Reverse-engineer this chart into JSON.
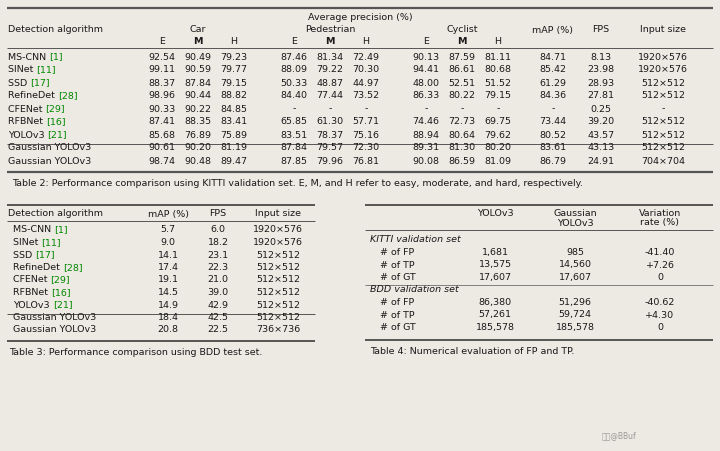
{
  "bg_color": "#ede9e3",
  "table2": {
    "rows": [
      [
        "MS-CNN [1]",
        "92.54",
        "90.49",
        "79.23",
        "87.46",
        "81.34",
        "72.49",
        "90.13",
        "87.59",
        "81.11",
        "84.71",
        "8.13",
        "1920×576"
      ],
      [
        "SINet [11]",
        "99.11",
        "90.59",
        "79.77",
        "88.09",
        "79.22",
        "70.30",
        "94.41",
        "86.61",
        "80.68",
        "85.42",
        "23.98",
        "1920×576"
      ],
      [
        "SSD [17]",
        "88.37",
        "87.84",
        "79.15",
        "50.33",
        "48.87",
        "44.97",
        "48.00",
        "52.51",
        "51.52",
        "61.29",
        "28.93",
        "512×512"
      ],
      [
        "RefineDet [28]",
        "98.96",
        "90.44",
        "88.82",
        "84.40",
        "77.44",
        "73.52",
        "86.33",
        "80.22",
        "79.15",
        "84.36",
        "27.81",
        "512×512"
      ],
      [
        "CFENet [29]",
        "90.33",
        "90.22",
        "84.85",
        "-",
        "-",
        "-",
        "-",
        "-",
        "-",
        "-",
        "0.25",
        "-"
      ],
      [
        "RFBNet [16]",
        "87.41",
        "88.35",
        "83.41",
        "65.85",
        "61.30",
        "57.71",
        "74.46",
        "72.73",
        "69.75",
        "73.44",
        "39.20",
        "512×512"
      ],
      [
        "YOLOv3 [21]",
        "85.68",
        "76.89",
        "75.89",
        "83.51",
        "78.37",
        "75.16",
        "88.94",
        "80.64",
        "79.62",
        "80.52",
        "43.57",
        "512×512"
      ],
      [
        "Gaussian YOLOv3",
        "90.61",
        "90.20",
        "81.19",
        "87.84",
        "79.57",
        "72.30",
        "89.31",
        "81.30",
        "80.20",
        "83.61",
        "43.13",
        "512×512"
      ],
      [
        "Gaussian YOLOv3",
        "98.74",
        "90.48",
        "89.47",
        "87.85",
        "79.96",
        "76.81",
        "90.08",
        "86.59",
        "81.09",
        "86.79",
        "24.91",
        "704×704"
      ]
    ],
    "caption": "Table 2: Performance comparison using KITTI validation set. E, M, and H refer to easy, moderate, and hard, respectively."
  },
  "table3": {
    "rows": [
      [
        "MS-CNN [1]",
        "5.7",
        "6.0",
        "1920×576"
      ],
      [
        "SINet [11]",
        "9.0",
        "18.2",
        "1920×576"
      ],
      [
        "SSD [17]",
        "14.1",
        "23.1",
        "512×512"
      ],
      [
        "RefineDet [28]",
        "17.4",
        "22.3",
        "512×512"
      ],
      [
        "CFENet [29]",
        "19.1",
        "21.0",
        "512×512"
      ],
      [
        "RFBNet [16]",
        "14.5",
        "39.0",
        "512×512"
      ],
      [
        "YOLOv3 [21]",
        "14.9",
        "42.9",
        "512×512"
      ],
      [
        "Gaussian YOLOv3",
        "18.4",
        "42.5",
        "512×512"
      ],
      [
        "Gaussian YOLOv3",
        "20.8",
        "22.5",
        "736×736"
      ]
    ],
    "caption": "Table 3: Performance comparison using BDD test set."
  },
  "table4": {
    "groups": [
      {
        "group_label": "KITTI validation set",
        "rows": [
          [
            "# of FP",
            "1,681",
            "985",
            "-41.40"
          ],
          [
            "# of TP",
            "13,575",
            "14,560",
            "+7.26"
          ],
          [
            "# of GT",
            "17,607",
            "17,607",
            "0"
          ]
        ]
      },
      {
        "group_label": "BDD validation set",
        "rows": [
          [
            "# of FP",
            "86,380",
            "51,296",
            "-40.62"
          ],
          [
            "# of TP",
            "57,261",
            "59,724",
            "+4.30"
          ],
          [
            "# of GT",
            "185,578",
            "185,578",
            "0"
          ]
        ]
      }
    ],
    "caption": "Table 4: Numerical evaluation of FP and TP."
  },
  "ref_color": "#008800",
  "text_color": "#1a1a1a",
  "algo_refs": {
    "MS-CNN [1]": [
      "MS-CNN ",
      "[1]"
    ],
    "SINet [11]": [
      "SINet ",
      "[11]"
    ],
    "SSD [17]": [
      "SSD ",
      "[17]"
    ],
    "RefineDet [28]": [
      "RefineDet ",
      "[28]"
    ],
    "CFENet [29]": [
      "CFENet ",
      "[29]"
    ],
    "RFBNet [16]": [
      "RFBNet ",
      "[16]"
    ],
    "YOLOv3 [21]": [
      "YOLOv3 ",
      "[21]"
    ],
    "Gaussian YOLOv3": [
      "Gaussian YOLOv3",
      null
    ]
  }
}
